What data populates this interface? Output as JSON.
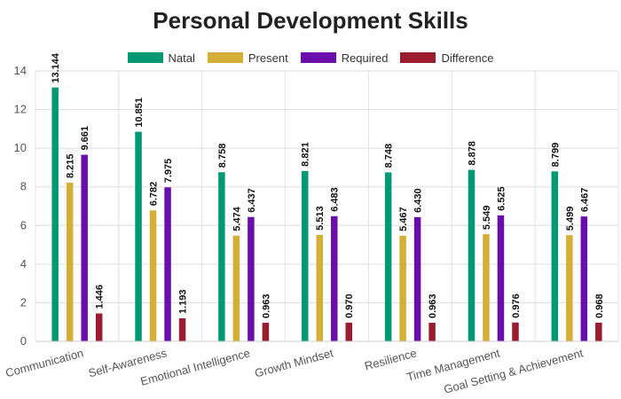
{
  "chart_data": {
    "type": "bar",
    "title": "Personal Development Skills",
    "categories": [
      "Communication",
      "Self-Awareness",
      "Emotional Intelligence",
      "Growth Mindset",
      "Resilience",
      "Time Management",
      "Goal Setting & Achievement"
    ],
    "series": [
      {
        "name": "Natal",
        "color": "#009973",
        "values": [
          13.144,
          10.851,
          8.758,
          8.821,
          8.748,
          8.878,
          8.799
        ]
      },
      {
        "name": "Present",
        "color": "#d4af37",
        "values": [
          8.215,
          6.782,
          5.474,
          5.513,
          5.467,
          5.549,
          5.499
        ]
      },
      {
        "name": "Required",
        "color": "#6a0dad",
        "values": [
          9.661,
          7.975,
          6.437,
          6.483,
          6.43,
          6.525,
          6.467
        ]
      },
      {
        "name": "Difference",
        "color": "#9b1c2e",
        "values": [
          1.446,
          1.193,
          0.963,
          0.97,
          0.963,
          0.976,
          0.968
        ]
      }
    ],
    "value_labels": [
      [
        "13.144",
        "10.851",
        "8.758",
        "8.821",
        "8.748",
        "8.878",
        "8.799"
      ],
      [
        "8.215",
        "6.782",
        "5.474",
        "5.513",
        "5.467",
        "5.549",
        "5.499"
      ],
      [
        "9.661",
        "7.975",
        "6.437",
        "6.483",
        "6.430",
        "6.525",
        "6.467"
      ],
      [
        "1.446",
        "1.193",
        "0.963",
        "0.970",
        "0.963",
        "0.976",
        "0.968"
      ]
    ],
    "y_ticks": [
      "0",
      "2",
      "4",
      "6",
      "8",
      "10",
      "12",
      "14"
    ],
    "ylim": [
      0,
      14
    ],
    "grid": true,
    "legend_position": "top-center"
  }
}
